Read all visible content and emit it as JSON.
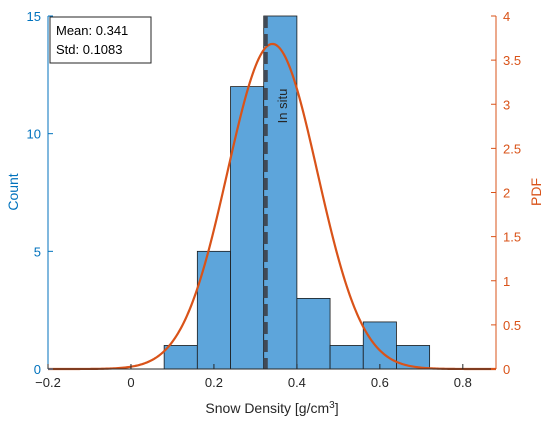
{
  "chart_data": {
    "type": "bar",
    "xlabel": "Snow Density [g/cm",
    "xlabel_sup": "3",
    "xlabel_end": "]",
    "ylabel_left": "Count",
    "ylabel_right": "PDF",
    "xlim": [
      -0.2,
      0.88
    ],
    "ylim_left": [
      0,
      15
    ],
    "ylim_right": [
      0,
      4
    ],
    "x_ticks": [
      -0.2,
      0,
      0.2,
      0.4,
      0.6,
      0.8
    ],
    "x_tick_labels": [
      "−0.2",
      "0",
      "0.2",
      "0.4",
      "0.6",
      "0.8"
    ],
    "y_left_ticks": [
      0,
      5,
      10,
      15
    ],
    "y_left_tick_labels": [
      "0",
      "5",
      "10",
      "15"
    ],
    "y_right_ticks": [
      0,
      0.5,
      1,
      1.5,
      2,
      2.5,
      3,
      3.5,
      4
    ],
    "y_right_tick_labels": [
      "0",
      "0.5",
      "1",
      "1.5",
      "2",
      "2.5",
      "3",
      "3.5",
      "4"
    ],
    "histogram": {
      "bin_edges": [
        0.08,
        0.16,
        0.24,
        0.32,
        0.4,
        0.48,
        0.56,
        0.64,
        0.72
      ],
      "counts": [
        1,
        5,
        12,
        15,
        3,
        1,
        2,
        1
      ]
    },
    "pdf_curve": {
      "type": "normal",
      "mean": 0.341,
      "std": 0.1083
    },
    "reference_line": {
      "x": 0.325,
      "label": "In situ",
      "style": "dashed"
    },
    "stats_box": {
      "mean_text": "Mean: 0.341",
      "std_text": "Std: 0.1083"
    },
    "colors": {
      "bar_fill": "#5da5db",
      "bar_edge": "#1a1a1a",
      "pdf_line": "#d95319",
      "left_axis": "#0072bd",
      "right_axis": "#d95319",
      "reference_line": "#404a57"
    }
  }
}
